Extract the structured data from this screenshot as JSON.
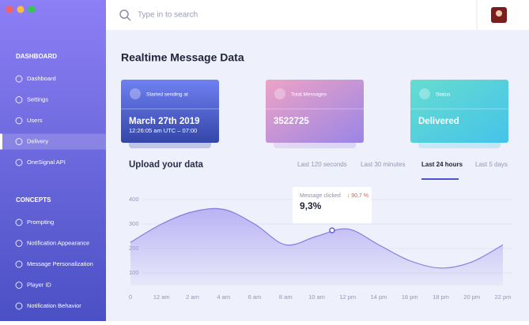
{
  "sidebar": {
    "sections": [
      {
        "title": "DASHBOARD",
        "items": [
          "Dashboard",
          "Settings",
          "Users",
          "Delivery",
          "OneSignal API"
        ]
      },
      {
        "title": "CONCEPTS",
        "items": [
          "Prompting",
          "Notification Appearance",
          "Message Personalization",
          "Player ID",
          "Notification Behavior"
        ]
      }
    ]
  },
  "search": {
    "placeholder": "Type in to search"
  },
  "page_title": "Realtime Message Data",
  "cards": [
    {
      "label": "Started sending at",
      "value": "March 27th 2019",
      "sub": "12:26:05 am UTC – 07:00"
    },
    {
      "label": "Total Messages",
      "value": "3522725"
    },
    {
      "label": "Status",
      "value": "Delivered"
    }
  ],
  "upload": {
    "title": "Upload your data",
    "tabs": [
      "Last 120 seconds",
      "Last 30 minutes",
      "Last 24 hours",
      "Last 5 days"
    ]
  },
  "chart_data": {
    "type": "area",
    "categories": [
      "0",
      "12 am",
      "2 am",
      "4 am",
      "6 am",
      "8 am",
      "10 am",
      "12 pm",
      "14 pm",
      "16 pm",
      "18 pm",
      "20 pm",
      "22 pm"
    ],
    "values": [
      225,
      300,
      350,
      360,
      300,
      215,
      250,
      280,
      215,
      150,
      120,
      145,
      215
    ],
    "ylim": [
      0,
      400
    ],
    "yticks": [
      100,
      200,
      300,
      400
    ],
    "grid": true,
    "color": "#a99ef2"
  },
  "tooltip": {
    "label": "Message clicked",
    "change": "↓ 90,7 %",
    "value": "9,3%"
  }
}
